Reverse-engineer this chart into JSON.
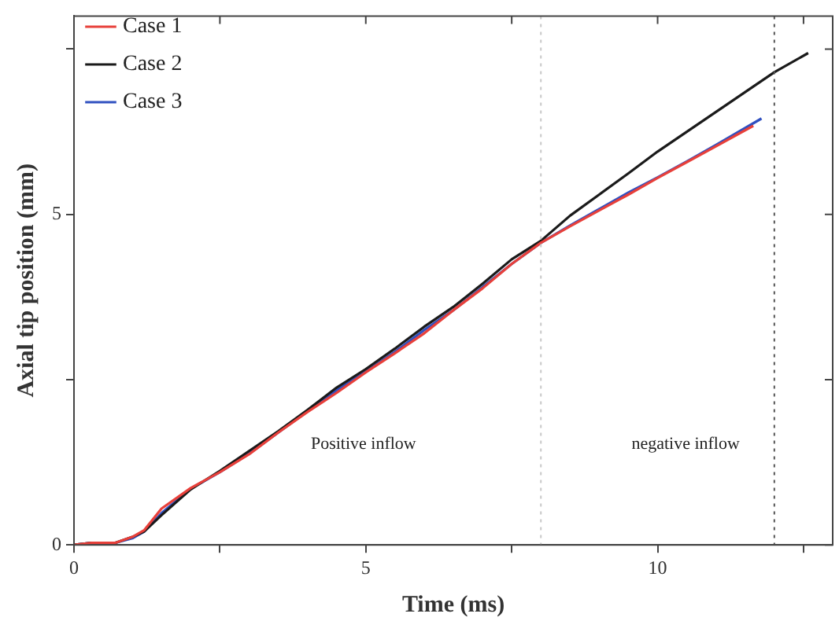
{
  "chart_data": {
    "type": "line",
    "xlabel": "Time (ms)",
    "ylabel": "Axial tip position (mm)",
    "xlim": [
      0,
      13
    ],
    "ylim": [
      0,
      8
    ],
    "xticks": [
      0,
      {
        "value": 2.5,
        "label": null
      },
      5,
      {
        "value": 7.5,
        "label": null
      },
      10,
      {
        "value": 12.5,
        "label": null
      }
    ],
    "yticks": [
      0,
      {
        "value": 2.5,
        "label": null
      },
      5,
      {
        "value": 7.5,
        "label": null
      }
    ],
    "grid": false,
    "legend": "top left",
    "marker": "none",
    "line_style": "solid",
    "series": [
      {
        "name": "Case 1",
        "color": "#e8403a",
        "x": [
          0,
          0.3,
          0.7,
          1.0,
          1.2,
          1.5,
          2,
          2.5,
          3,
          3.5,
          4,
          4.5,
          5,
          5.5,
          6,
          6.5,
          7,
          7.5,
          8,
          8.5,
          9,
          9.5,
          10,
          10.5,
          11,
          11.64
        ],
        "values": [
          0,
          0.03,
          0.03,
          0.12,
          0.22,
          0.55,
          0.86,
          1.1,
          1.37,
          1.7,
          2.01,
          2.3,
          2.61,
          2.9,
          3.2,
          3.55,
          3.88,
          4.25,
          4.57,
          4.82,
          5.06,
          5.3,
          5.55,
          5.79,
          6.03,
          6.34
        ]
      },
      {
        "name": "Case 2",
        "color": "#1a1a1a",
        "x": [
          0,
          0.3,
          0.7,
          1.0,
          1.2,
          1.5,
          2,
          2.5,
          3,
          3.5,
          4,
          4.5,
          5,
          5.5,
          6,
          6.5,
          7,
          7.5,
          8,
          8.5,
          9,
          9.5,
          10,
          10.5,
          11,
          11.5,
          12,
          12.58
        ],
        "values": [
          0,
          0.03,
          0.03,
          0.12,
          0.2,
          0.45,
          0.84,
          1.12,
          1.42,
          1.72,
          2.04,
          2.38,
          2.66,
          2.97,
          3.3,
          3.6,
          3.95,
          4.32,
          4.6,
          4.98,
          5.3,
          5.62,
          5.95,
          6.25,
          6.55,
          6.85,
          7.15,
          7.44
        ]
      },
      {
        "name": "Case 3",
        "color": "#3050c0",
        "x": [
          0,
          0.3,
          0.7,
          1.0,
          1.2,
          1.5,
          2,
          2.5,
          3,
          3.5,
          4,
          4.5,
          5,
          5.5,
          6,
          6.5,
          7,
          7.5,
          8,
          8.5,
          9,
          9.5,
          10,
          10.5,
          11,
          11.78
        ],
        "values": [
          0,
          0.03,
          0.03,
          0.1,
          0.2,
          0.48,
          0.85,
          1.1,
          1.38,
          1.7,
          2.02,
          2.34,
          2.62,
          2.92,
          3.25,
          3.55,
          3.9,
          4.25,
          4.57,
          4.83,
          5.08,
          5.33,
          5.56,
          5.8,
          6.05,
          6.45
        ]
      }
    ],
    "ref_lines": [
      {
        "axis": "x",
        "value": 8,
        "color": "#c8c8c8",
        "line_style": "dotted"
      },
      {
        "axis": "x",
        "value": 12,
        "color": "#555555",
        "line_style": "dotted"
      }
    ],
    "annotations": [
      "Positive inflow",
      "negative inflow"
    ]
  }
}
